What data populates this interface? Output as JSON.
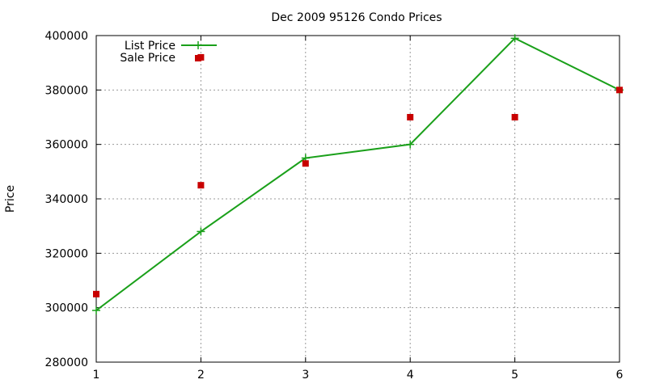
{
  "chart_data": {
    "type": "line",
    "title": "Dec 2009 95126 Condo Prices",
    "xlabel": "",
    "ylabel": "Price",
    "x": [
      1,
      2,
      3,
      4,
      5,
      6
    ],
    "xlim": [
      1,
      6
    ],
    "ylim": [
      280000,
      400000
    ],
    "xticks": [
      "1",
      "2",
      "3",
      "4",
      "5",
      "6"
    ],
    "yticks": [
      "280000",
      "300000",
      "320000",
      "340000",
      "360000",
      "380000",
      "400000"
    ],
    "grid": true,
    "legend_position": "top-left",
    "series": [
      {
        "name": "List Price",
        "style": "line-points",
        "marker": "plus",
        "color": "#1aa01a",
        "values": [
          299000,
          328000,
          355000,
          360000,
          399000,
          380000
        ]
      },
      {
        "name": "Sale Price",
        "style": "points",
        "marker": "square",
        "color": "#c80000",
        "values": [
          305000,
          392000,
          353000,
          370000,
          370000,
          380000
        ]
      }
    ],
    "extra_points": [
      {
        "series": "Sale Price",
        "x": 2,
        "y": 345000
      }
    ]
  }
}
